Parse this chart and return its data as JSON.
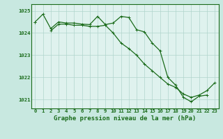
{
  "title": "Graphe pression niveau de la mer (hPa)",
  "background_color": "#c8e8e0",
  "plot_bg_color": "#dff2ee",
  "grid_color": "#b0d4cc",
  "line_color": "#1a6b1a",
  "hours": [
    0,
    1,
    2,
    3,
    4,
    5,
    6,
    7,
    8,
    9,
    10,
    11,
    12,
    13,
    14,
    15,
    16,
    17,
    18,
    19,
    20,
    21,
    22,
    23
  ],
  "series1": [
    1024.5,
    1024.85,
    1024.2,
    1024.5,
    1024.45,
    1024.45,
    1024.4,
    1024.38,
    1024.75,
    1024.38,
    1024.45,
    1024.75,
    1024.7,
    1024.15,
    1024.05,
    1023.55,
    1023.2,
    1022.0,
    1021.65,
    1021.1,
    1020.9,
    1021.15,
    1021.2,
    null
  ],
  "series2": [
    1024.5,
    null,
    1024.1,
    1024.4,
    1024.4,
    1024.35,
    1024.35,
    1024.3,
    1024.3,
    1024.35,
    1024.0,
    1023.55,
    1023.3,
    1023.0,
    1022.6,
    1022.3,
    1022.0,
    1021.7,
    1021.55,
    1021.25,
    1021.1,
    1021.2,
    1021.4,
    1021.75
  ],
  "ylim": [
    1020.6,
    1025.3
  ],
  "yticks": [
    1021,
    1022,
    1023,
    1024,
    1025
  ],
  "xlim": [
    -0.5,
    23.5
  ],
  "xticks": [
    0,
    1,
    2,
    3,
    4,
    5,
    6,
    7,
    8,
    9,
    10,
    11,
    12,
    13,
    14,
    15,
    16,
    17,
    18,
    19,
    20,
    21,
    22,
    23
  ],
  "title_fontsize": 6.5,
  "tick_fontsize": 5.2,
  "linewidth": 0.9,
  "markersize": 2.8,
  "markeredgewidth": 0.7
}
